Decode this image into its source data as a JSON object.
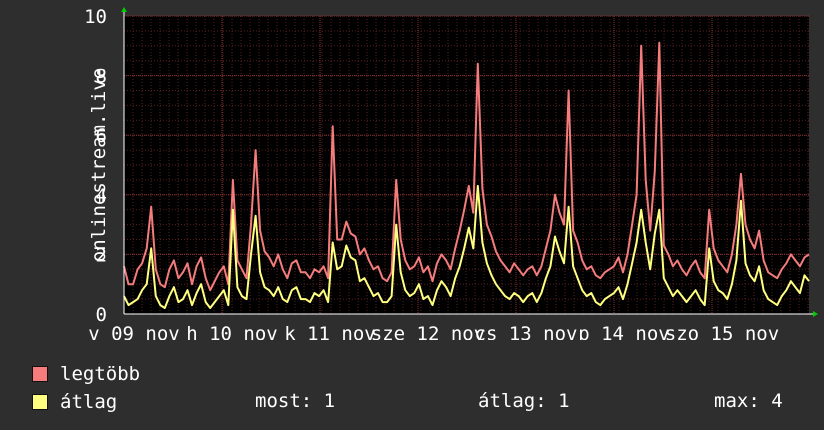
{
  "chart_data": {
    "type": "line",
    "ylabel": "onlinestream.live",
    "ylim": [
      0,
      10
    ],
    "yticks": [
      0,
      2,
      4,
      6,
      8,
      10
    ],
    "xlabels": [
      "v 09 nov",
      "h 10 nov",
      "k 11 nov",
      "sze 12 nov",
      "cs 13 nov",
      "p 14 nov",
      "szo 15 nov"
    ],
    "grid": true,
    "colors": {
      "max": "#f47c7c",
      "avg": "#ffff80",
      "plot_bg": "#000000",
      "grid": "#5a2020"
    },
    "series": [
      {
        "name": "legtöbb",
        "values": [
          1.6,
          1.0,
          1.0,
          1.5,
          1.7,
          2.2,
          3.6,
          1.5,
          1.0,
          0.9,
          1.5,
          1.8,
          1.2,
          1.4,
          1.7,
          1.0,
          1.6,
          1.9,
          1.2,
          0.8,
          1.1,
          1.4,
          1.6,
          1.0,
          4.5,
          1.8,
          1.5,
          1.2,
          3.0,
          5.5,
          2.8,
          2.1,
          1.9,
          1.6,
          2.0,
          1.5,
          1.2,
          1.7,
          1.8,
          1.4,
          1.4,
          1.2,
          1.5,
          1.4,
          1.6,
          1.2,
          6.3,
          2.5,
          2.5,
          3.1,
          2.7,
          2.6,
          2.0,
          2.2,
          1.8,
          1.5,
          1.6,
          1.2,
          1.1,
          1.4,
          4.5,
          2.5,
          1.8,
          1.5,
          1.6,
          1.9,
          1.4,
          1.6,
          1.1,
          1.7,
          2.0,
          1.8,
          1.5,
          2.2,
          2.8,
          3.5,
          4.3,
          3.4,
          8.4,
          4.2,
          3.0,
          2.6,
          2.1,
          1.8,
          1.6,
          1.4,
          1.7,
          1.5,
          1.3,
          1.5,
          1.6,
          1.3,
          1.6,
          2.2,
          2.8,
          4.0,
          3.4,
          3.0,
          7.5,
          2.8,
          2.4,
          1.8,
          1.5,
          1.6,
          1.3,
          1.2,
          1.4,
          1.5,
          1.6,
          1.9,
          1.4,
          2.0,
          3.0,
          4.0,
          9.0,
          4.5,
          2.8,
          4.8,
          9.1,
          2.3,
          2.0,
          1.6,
          1.8,
          1.5,
          1.3,
          1.6,
          1.8,
          1.4,
          1.2,
          3.5,
          2.2,
          1.8,
          1.6,
          1.4,
          2.0,
          3.0,
          4.7,
          3.0,
          2.5,
          2.2,
          2.8,
          1.8,
          1.4,
          1.3,
          1.2,
          1.5,
          1.7,
          2.0,
          1.8,
          1.6,
          1.9,
          2.0
        ]
      },
      {
        "name": "átlag",
        "values": [
          0.6,
          0.3,
          0.4,
          0.5,
          0.8,
          1.0,
          2.2,
          0.6,
          0.3,
          0.2,
          0.6,
          0.9,
          0.4,
          0.5,
          0.8,
          0.3,
          0.7,
          1.0,
          0.4,
          0.2,
          0.4,
          0.6,
          0.8,
          0.3,
          3.5,
          0.9,
          0.6,
          0.5,
          2.0,
          3.3,
          1.4,
          0.9,
          0.8,
          0.6,
          0.9,
          0.5,
          0.4,
          0.8,
          0.9,
          0.5,
          0.5,
          0.4,
          0.7,
          0.6,
          0.8,
          0.4,
          2.4,
          1.5,
          1.6,
          2.3,
          1.9,
          1.8,
          1.1,
          1.2,
          0.9,
          0.6,
          0.7,
          0.4,
          0.4,
          0.6,
          3.0,
          1.4,
          0.8,
          0.6,
          0.7,
          1.0,
          0.5,
          0.6,
          0.3,
          0.8,
          1.1,
          0.9,
          0.6,
          1.2,
          1.6,
          2.2,
          2.9,
          2.2,
          4.3,
          2.4,
          1.7,
          1.3,
          1.0,
          0.8,
          0.6,
          0.5,
          0.7,
          0.6,
          0.4,
          0.6,
          0.7,
          0.4,
          0.7,
          1.2,
          1.6,
          2.6,
          2.1,
          1.7,
          3.6,
          1.6,
          1.2,
          0.8,
          0.6,
          0.7,
          0.4,
          0.3,
          0.5,
          0.6,
          0.7,
          0.9,
          0.5,
          1.0,
          1.7,
          2.4,
          3.5,
          2.4,
          1.5,
          2.7,
          3.5,
          1.2,
          0.9,
          0.6,
          0.8,
          0.6,
          0.4,
          0.6,
          0.8,
          0.5,
          0.3,
          2.2,
          1.1,
          0.8,
          0.7,
          0.5,
          1.0,
          1.8,
          3.8,
          1.7,
          1.3,
          1.1,
          1.6,
          0.8,
          0.5,
          0.4,
          0.3,
          0.6,
          0.8,
          1.1,
          0.9,
          0.7,
          1.3,
          1.1
        ]
      }
    ]
  },
  "legend": {
    "max_label": "legtöbb",
    "avg_label": "átlag"
  },
  "stats": {
    "now": "most: 1",
    "average": "átlag: 1",
    "max": "max: 4"
  }
}
